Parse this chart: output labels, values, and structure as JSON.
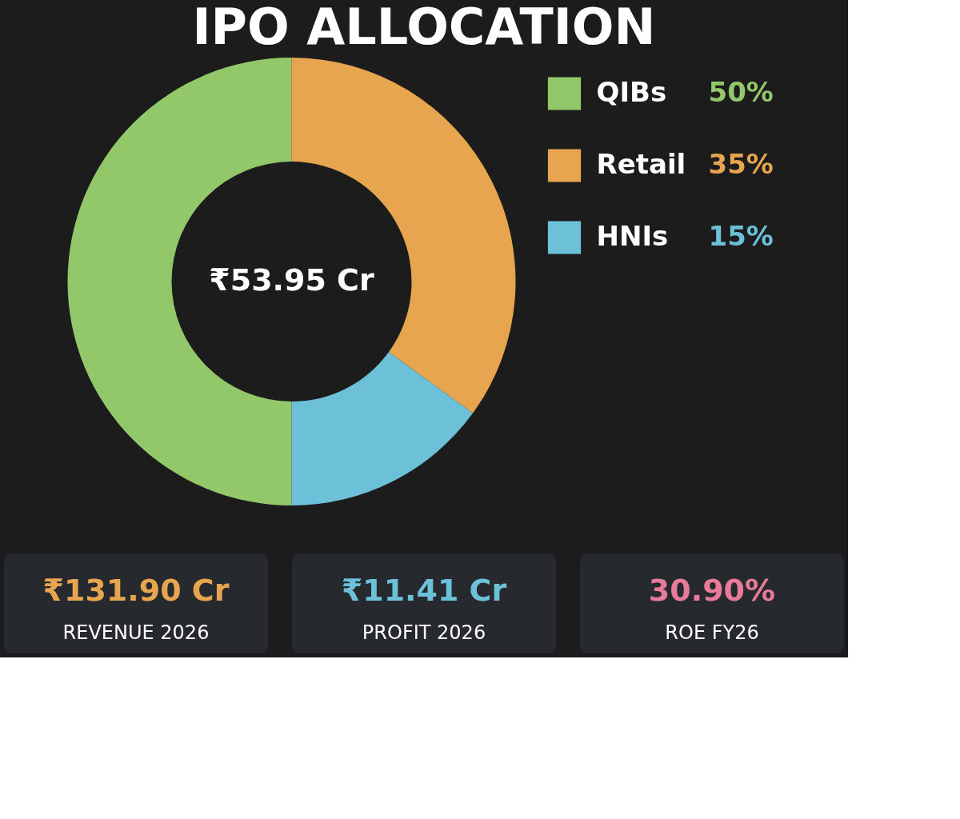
{
  "chart_data": [
    {
      "type": "donut",
      "title": "IPO ALLOCATION",
      "categories": [
        "QIBs",
        "Retail",
        "HNIs"
      ],
      "values": [
        50,
        35,
        15
      ],
      "colors": [
        "#93c86a",
        "#e6a54e",
        "#6cc0d8"
      ],
      "value_labels": [
        "50%",
        "35%",
        "15%"
      ],
      "annotations": [
        "₹53.95 Cr"
      ],
      "legend": "right"
    },
    {
      "type": "other",
      "annotations": [
        "₹131.90 Cr",
        "REVENUE 2026",
        "₹11.41 Cr",
        "PROFIT 2026",
        "30.90%",
        "ROE FY26"
      ],
      "colors": [
        "#e6a54e",
        "#6cc0d8",
        "#e87a9a"
      ]
    }
  ]
}
